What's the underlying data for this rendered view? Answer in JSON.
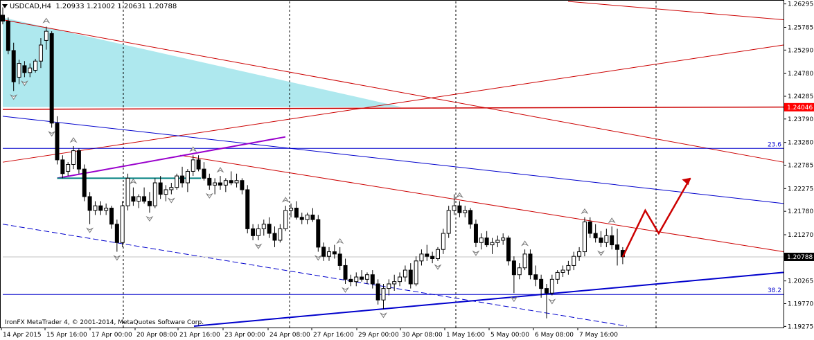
{
  "header": {
    "symbol_timeframe": "USDCAD,H4",
    "ohlc": "1.20933 1.21002 1.20631 1.20788"
  },
  "footer": {
    "copyright": "IronFX MetaTrader 4, © 2001-2014, MetaQuotes Software Corp."
  },
  "colors": {
    "bull_candle": "#ffffff",
    "bear_candle": "#000000",
    "bid_label_bg": "#000000",
    "price_tag_bg": "#ff0000",
    "fib_line": "#0000cc",
    "trend_red": "#cc0000",
    "trend_blue": "#0000cc",
    "triangle_fill": "#aee8ee",
    "purple_line": "#9900cc",
    "teal_line": "#008080"
  },
  "chart_data": {
    "type": "candlestick",
    "symbol": "USDCAD",
    "timeframe": "H4",
    "ylim": [
      1.1925,
      1.2635
    ],
    "y_ticks": [
      "1.26295",
      "1.25785",
      "1.25290",
      "1.24780",
      "1.24285",
      "1.23790",
      "1.23280",
      "1.22785",
      "1.22275",
      "1.21780",
      "1.21270",
      "1.20788",
      "1.20265",
      "1.19770",
      "1.19275"
    ],
    "x_ticks": [
      "14 Apr 2015",
      "15 Apr 16:00",
      "17 Apr 00:00",
      "20 Apr 08:00",
      "21 Apr 16:00",
      "23 Apr 00:00",
      "24 Apr 08:00",
      "27 Apr 16:00",
      "29 Apr 00:00",
      "30 Apr 08:00",
      "1 May 16:00",
      "5 May 00:00",
      "6 May 08:00",
      "7 May 16:00"
    ],
    "current_price": 1.20788,
    "price_tag": 1.24046,
    "fib_levels": [
      {
        "label": "23.6",
        "price": 1.2315
      },
      {
        "label": "38.2",
        "price": 1.1997
      }
    ],
    "candles": [
      [
        1.2605,
        1.2622,
        1.2585,
        1.2592
      ],
      [
        1.2592,
        1.26,
        1.252,
        1.2528
      ],
      [
        1.2528,
        1.2545,
        1.244,
        1.246
      ],
      [
        1.247,
        1.2508,
        1.2455,
        1.25
      ],
      [
        1.2495,
        1.2505,
        1.247,
        1.248
      ],
      [
        1.248,
        1.25,
        1.247,
        1.249
      ],
      [
        1.2485,
        1.251,
        1.248,
        1.2505
      ],
      [
        1.2505,
        1.2555,
        1.249,
        1.254
      ],
      [
        1.255,
        1.258,
        1.253,
        1.257
      ],
      [
        1.2565,
        1.257,
        1.236,
        1.237
      ],
      [
        1.237,
        1.2385,
        1.228,
        1.229
      ],
      [
        1.229,
        1.23,
        1.225,
        1.226
      ],
      [
        1.2265,
        1.2285,
        1.2255,
        1.228
      ],
      [
        1.228,
        1.232,
        1.227,
        1.231
      ],
      [
        1.231,
        1.2315,
        1.226,
        1.227
      ],
      [
        1.227,
        1.228,
        1.22,
        1.221
      ],
      [
        1.221,
        1.222,
        1.215,
        1.218
      ],
      [
        1.218,
        1.22,
        1.217,
        1.219
      ],
      [
        1.219,
        1.22,
        1.217,
        1.218
      ],
      [
        1.218,
        1.2195,
        1.217,
        1.2185
      ],
      [
        1.2185,
        1.219,
        1.214,
        1.215
      ],
      [
        1.215,
        1.216,
        1.209,
        1.211
      ],
      [
        1.211,
        1.22,
        1.21,
        1.219
      ],
      [
        1.219,
        1.226,
        1.218,
        1.225
      ],
      [
        1.221,
        1.223,
        1.219,
        1.22
      ],
      [
        1.22,
        1.2215,
        1.2185,
        1.221
      ],
      [
        1.221,
        1.223,
        1.2195,
        1.22
      ],
      [
        1.22,
        1.222,
        1.2175,
        1.219
      ],
      [
        1.219,
        1.225,
        1.2185,
        1.224
      ],
      [
        1.224,
        1.2255,
        1.2205,
        1.2215
      ],
      [
        1.2215,
        1.2235,
        1.22,
        1.2225
      ],
      [
        1.2225,
        1.224,
        1.2215,
        1.223
      ],
      [
        1.223,
        1.226,
        1.2225,
        1.2255
      ],
      [
        1.2255,
        1.2275,
        1.223,
        1.224
      ],
      [
        1.224,
        1.227,
        1.222,
        1.2265
      ],
      [
        1.2265,
        1.23,
        1.2255,
        1.229
      ],
      [
        1.229,
        1.23,
        1.2265,
        1.227
      ],
      [
        1.227,
        1.2285,
        1.2245,
        1.225
      ],
      [
        1.225,
        1.226,
        1.2225,
        1.2235
      ],
      [
        1.2235,
        1.225,
        1.2215,
        1.224
      ],
      [
        1.224,
        1.2255,
        1.2225,
        1.2235
      ],
      [
        1.2235,
        1.225,
        1.222,
        1.2245
      ],
      [
        1.2245,
        1.2265,
        1.2235,
        1.224
      ],
      [
        1.224,
        1.226,
        1.223,
        1.2245
      ],
      [
        1.2245,
        1.225,
        1.2215,
        1.2225
      ],
      [
        1.2225,
        1.2235,
        1.213,
        1.214
      ],
      [
        1.214,
        1.215,
        1.2115,
        1.2125
      ],
      [
        1.2125,
        1.215,
        1.2115,
        1.214
      ],
      [
        1.214,
        1.216,
        1.2125,
        1.215
      ],
      [
        1.215,
        1.2165,
        1.212,
        1.213
      ],
      [
        1.213,
        1.2145,
        1.21,
        1.2115
      ],
      [
        1.2115,
        1.215,
        1.211,
        1.214
      ],
      [
        1.214,
        1.219,
        1.2135,
        1.218
      ],
      [
        1.218,
        1.2195,
        1.2165,
        1.2185
      ],
      [
        1.2185,
        1.22,
        1.216,
        1.2165
      ],
      [
        1.2165,
        1.2175,
        1.215,
        1.216
      ],
      [
        1.216,
        1.2175,
        1.215,
        1.217
      ],
      [
        1.217,
        1.2185,
        1.2155,
        1.216
      ],
      [
        1.216,
        1.217,
        1.209,
        1.21
      ],
      [
        1.21,
        1.211,
        1.207,
        1.208
      ],
      [
        1.208,
        1.21,
        1.207,
        1.209
      ],
      [
        1.209,
        1.2105,
        1.2075,
        1.2085
      ],
      [
        1.2085,
        1.21,
        1.205,
        1.206
      ],
      [
        1.206,
        1.2075,
        1.202,
        1.203
      ],
      [
        1.203,
        1.204,
        1.2015,
        1.2025
      ],
      [
        1.2025,
        1.2045,
        1.2015,
        1.2035
      ],
      [
        1.2035,
        1.205,
        1.2025,
        1.203
      ],
      [
        1.203,
        1.2045,
        1.202,
        1.204
      ],
      [
        1.204,
        1.205,
        1.201,
        1.202
      ],
      [
        1.202,
        1.203,
        1.1975,
        1.1985
      ],
      [
        1.1985,
        1.202,
        1.1965,
        1.201
      ],
      [
        1.201,
        1.203,
        1.1995,
        1.202
      ],
      [
        1.202,
        1.204,
        1.2005,
        1.2025
      ],
      [
        1.2025,
        1.2045,
        1.2015,
        1.2035
      ],
      [
        1.2035,
        1.206,
        1.2025,
        1.205
      ],
      [
        1.205,
        1.2065,
        1.201,
        1.202
      ],
      [
        1.202,
        1.208,
        1.2015,
        1.207
      ],
      [
        1.207,
        1.2095,
        1.206,
        1.2085
      ],
      [
        1.2085,
        1.2105,
        1.207,
        1.208
      ],
      [
        1.208,
        1.209,
        1.2065,
        1.2075
      ],
      [
        1.2075,
        1.21,
        1.207,
        1.2095
      ],
      [
        1.2095,
        1.214,
        1.2085,
        1.213
      ],
      [
        1.213,
        1.219,
        1.212,
        1.218
      ],
      [
        1.218,
        1.2215,
        1.217,
        1.219
      ],
      [
        1.219,
        1.22,
        1.2165,
        1.2175
      ],
      [
        1.2175,
        1.219,
        1.2165,
        1.218
      ],
      [
        1.218,
        1.2185,
        1.214,
        1.215
      ],
      [
        1.215,
        1.216,
        1.21,
        1.211
      ],
      [
        1.211,
        1.213,
        1.2095,
        1.212
      ],
      [
        1.212,
        1.2135,
        1.21,
        1.2105
      ],
      [
        1.2105,
        1.212,
        1.2085,
        1.211
      ],
      [
        1.211,
        1.2125,
        1.21,
        1.2115
      ],
      [
        1.2115,
        1.213,
        1.2105,
        1.212
      ],
      [
        1.212,
        1.2125,
        1.206,
        1.207
      ],
      [
        1.207,
        1.208,
        1.2,
        1.204
      ],
      [
        1.204,
        1.2065,
        1.203,
        1.2055
      ],
      [
        1.2055,
        1.2095,
        1.205,
        1.2085
      ],
      [
        1.2085,
        1.2095,
        1.203,
        1.204
      ],
      [
        1.204,
        1.206,
        1.2015,
        1.203
      ],
      [
        1.203,
        1.204,
        1.199,
        1.201
      ],
      [
        1.201,
        1.202,
        1.1945,
        1.2
      ],
      [
        1.2,
        1.204,
        1.1995,
        1.203
      ],
      [
        1.203,
        1.205,
        1.202,
        1.2045
      ],
      [
        1.2045,
        1.206,
        1.2035,
        1.205
      ],
      [
        1.205,
        1.207,
        1.204,
        1.206
      ],
      [
        1.206,
        1.209,
        1.205,
        1.208
      ],
      [
        1.208,
        1.21,
        1.207,
        1.209
      ],
      [
        1.209,
        1.2165,
        1.208,
        1.2155
      ],
      [
        1.2155,
        1.2165,
        1.212,
        1.213
      ],
      [
        1.213,
        1.215,
        1.211,
        1.212
      ],
      [
        1.212,
        1.2135,
        1.21,
        1.211
      ],
      [
        1.211,
        1.214,
        1.21,
        1.2125
      ],
      [
        1.2125,
        1.2145,
        1.2095,
        1.2105
      ],
      [
        1.2105,
        1.214,
        1.206,
        1.2095
      ],
      [
        1.2093,
        1.21,
        1.2063,
        1.2079
      ]
    ],
    "fractal_up_indices": [
      8,
      13,
      24,
      35,
      40,
      52,
      62,
      84,
      96,
      107,
      112
    ],
    "fractal_down_indices": [
      2,
      4,
      9,
      16,
      21,
      27,
      31,
      38,
      47,
      58,
      63,
      70,
      80,
      87,
      94,
      101,
      110
    ],
    "arrow_up_indices": [],
    "forecast_path": [
      [
        1.20788,
        0
      ],
      [
        1.218,
        5
      ],
      [
        1.213,
        8
      ],
      [
        1.225,
        15
      ]
    ]
  }
}
